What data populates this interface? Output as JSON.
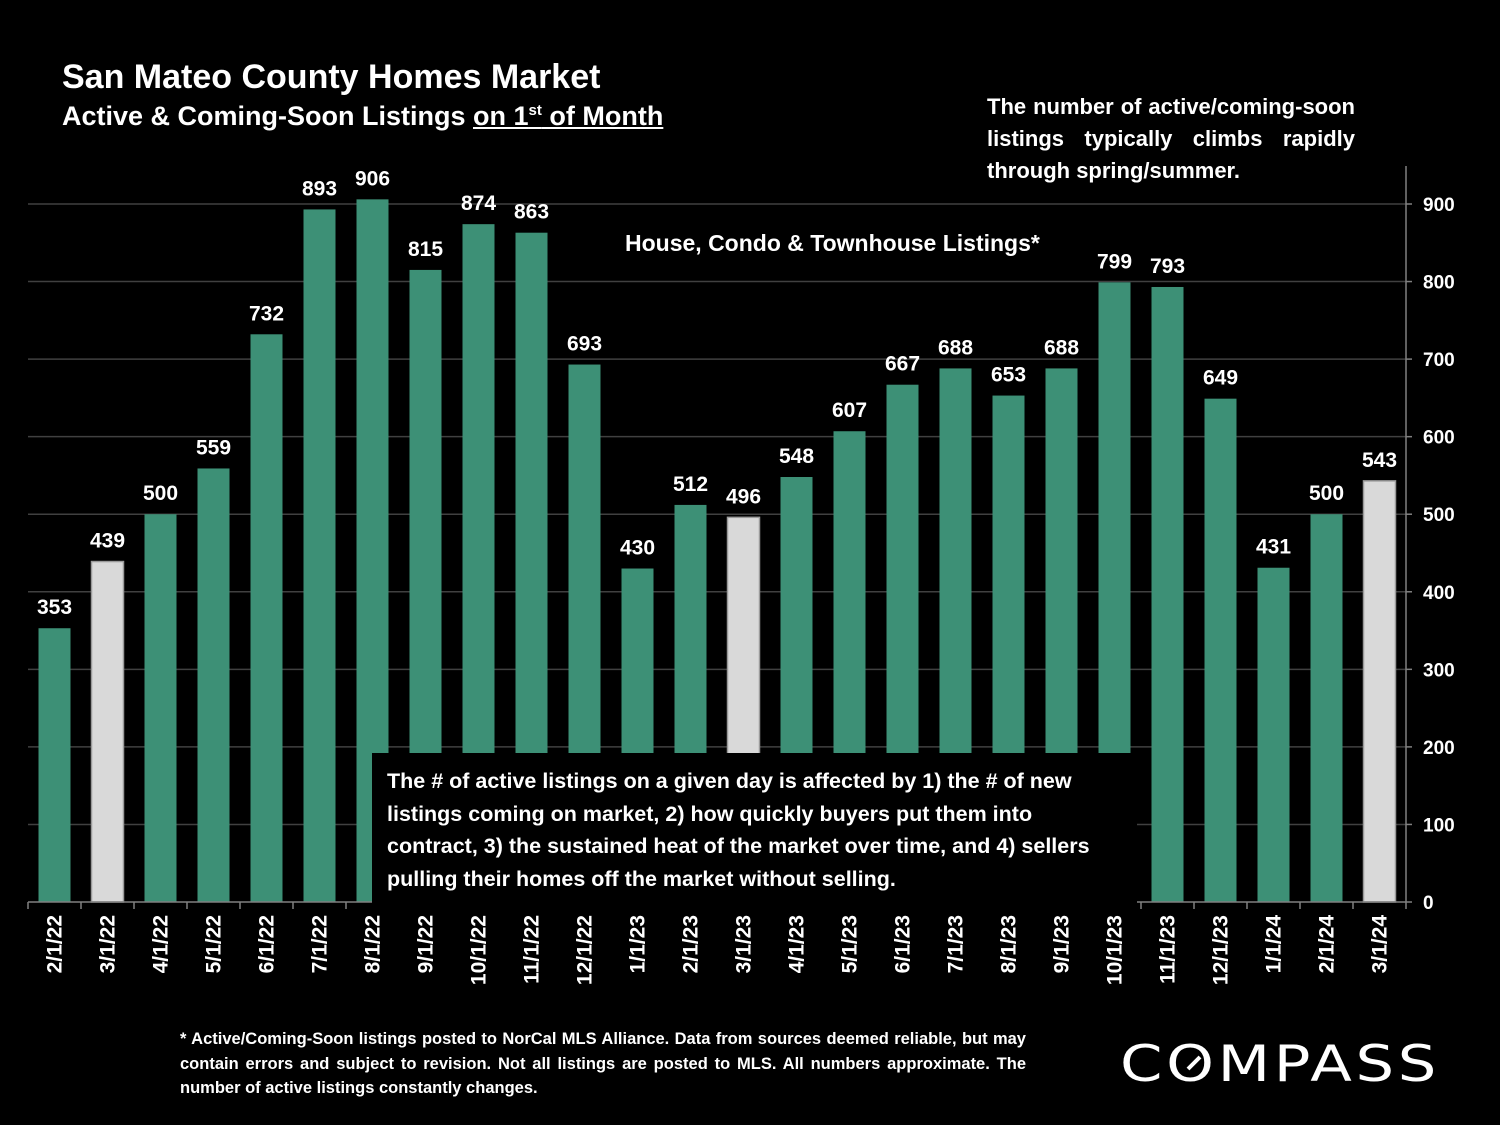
{
  "header": {
    "title": "San Mateo County Homes Market",
    "subtitle_pre": "Active & Coming-Soon Listings ",
    "subtitle_u1": "on 1",
    "subtitle_sup": "st",
    "subtitle_u2": " of Month"
  },
  "annotations": {
    "top_note": "The number of active/coming-soon listings typically climbs rapidly through spring/summer.",
    "series_label": "House, Condo & Townhouse Listings*",
    "box_note": "The # of active listings on a given day is affected by 1) the # of new listings coming on market, 2) how quickly buyers put them into contract, 3) the sustained heat of the market over time, and 4) sellers pulling their homes off the market without selling."
  },
  "footnote": "* Active/Coming-Soon listings posted to NorCal MLS Alliance.  Data from sources deemed reliable, but may contain errors and subject to revision.  Not all listings are posted to MLS. All numbers approximate. The number of active listings constantly changes.",
  "logo": {
    "text": "COMPASS"
  },
  "chart_data": {
    "type": "bar",
    "title": "San Mateo County Homes Market",
    "series_name": "House, Condo & Townhouse Listings*",
    "categories": [
      "2/1/22",
      "3/1/22",
      "4/1/22",
      "5/1/22",
      "6/1/22",
      "7/1/22",
      "8/1/22",
      "9/1/22",
      "10/1/22",
      "11/1/22",
      "12/1/22",
      "1/1/23",
      "2/1/23",
      "3/1/23",
      "4/1/23",
      "5/1/23",
      "6/1/23",
      "7/1/23",
      "8/1/23",
      "9/1/23",
      "10/1/23",
      "11/1/23",
      "12/1/23",
      "1/1/24",
      "2/1/24",
      "3/1/24"
    ],
    "values": [
      353,
      439,
      500,
      559,
      732,
      893,
      906,
      815,
      874,
      863,
      693,
      430,
      512,
      496,
      548,
      607,
      667,
      688,
      653,
      688,
      799,
      793,
      649,
      431,
      500,
      543
    ],
    "highlighted": [
      false,
      true,
      false,
      false,
      false,
      false,
      false,
      false,
      false,
      false,
      false,
      false,
      false,
      true,
      false,
      false,
      false,
      false,
      false,
      false,
      false,
      false,
      false,
      false,
      false,
      true
    ],
    "colors": {
      "bar": "#3d9076",
      "highlight": "#d9d9d9",
      "grid": "#404040"
    },
    "yaxis": {
      "position": "right",
      "ylim": [
        0,
        900
      ],
      "ticks": [
        0,
        100,
        200,
        300,
        400,
        500,
        600,
        700,
        800,
        900
      ]
    },
    "grid": true,
    "xlabel": "",
    "ylabel": ""
  }
}
